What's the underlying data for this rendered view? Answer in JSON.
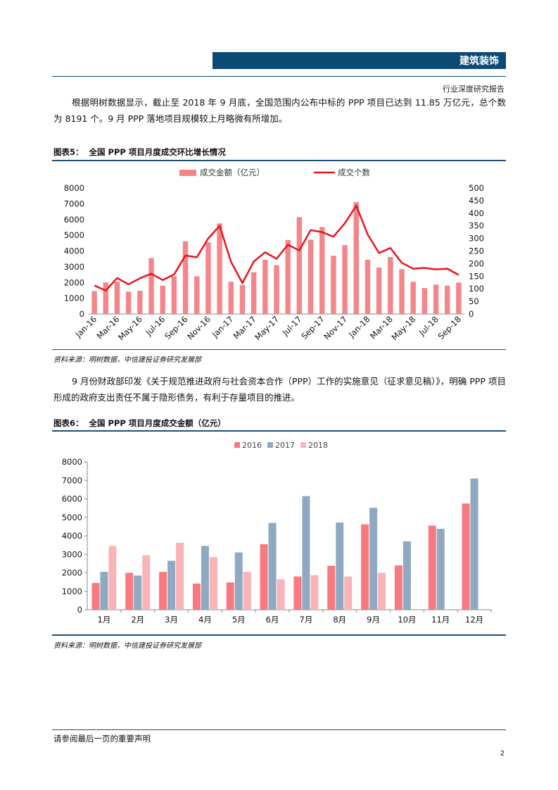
{
  "header": {
    "section_title": "建筑装饰",
    "subtitle": "行业深度研究报告"
  },
  "paragraphs": [
    "根据明树数据显示，截止至 2018 年 9 月底，全国范围内公布中标的 PPP 项目已达到 11.85 万亿元，总个数为 8191 个。9 月 PPP 落地项目规模较上月略微有所增加。",
    "9 月份财政部印发《关于规范推进政府与社会资本合作（PPP）工作的实施意见（征求意见稿）》，明确 PPP 项目形成的政府支出责任不属于隐形债务，有利于存量项目的推进。"
  ],
  "figure5": {
    "label": "图表5：",
    "title": "全国 PPP 项目月度成交环比增长情况",
    "source": "资料来源：明树数据，中信建投证券研究发展部"
  },
  "figure6": {
    "label": "图表6：",
    "title": "全国 PPP 项目月度成交金额（亿元）",
    "source": "资料来源：明树数据，中信建投证券研究发展部"
  },
  "footer": {
    "note": "请参阅最后一页的重要声明",
    "page": "2"
  },
  "colors": {
    "header_bg": "#0c4a76",
    "bar_amount": "#f4868a",
    "line_count": "#e8151b",
    "s2016": "#f8797f",
    "s2017": "#8ea9c1",
    "s2018": "#fab3b7"
  },
  "chart_data": [
    {
      "type": "bar+line",
      "series": [
        {
          "name": "成交金额（亿元）",
          "type": "bar",
          "axis": "left",
          "values": [
            1450,
            2000,
            2050,
            1420,
            1480,
            3550,
            1800,
            2380,
            4620,
            2400,
            4550,
            5750,
            2050,
            1850,
            2650,
            3450,
            3100,
            4700,
            6150,
            4720,
            5520,
            3700,
            4380,
            7100,
            3450,
            2950,
            3620,
            2850,
            2050,
            1650,
            1870,
            1800,
            2000
          ]
        },
        {
          "name": "成交个数",
          "type": "line",
          "axis": "right",
          "values": [
            113,
            93,
            143,
            118,
            142,
            160,
            135,
            157,
            232,
            225,
            300,
            350,
            207,
            123,
            208,
            245,
            219,
            275,
            252,
            333,
            325,
            307,
            360,
            430,
            316,
            242,
            262,
            203,
            180,
            183,
            177,
            180,
            155
          ]
        }
      ],
      "x_tick_labels": [
        "Jan-16",
        "Mar-16",
        "May-16",
        "Jul-16",
        "Sep-16",
        "Nov-16",
        "Jan-17",
        "Mar-17",
        "May-17",
        "Jul-17",
        "Sep-17",
        "Nov-17",
        "Jan-18",
        "Mar-18",
        "May-18",
        "Jul-18",
        "Sep-18"
      ],
      "y_left": {
        "min": 0,
        "max": 8000,
        "ticks": [
          0,
          1000,
          2000,
          3000,
          4000,
          5000,
          6000,
          7000,
          8000
        ]
      },
      "y_right": {
        "min": 0,
        "max": 500,
        "ticks": [
          0,
          50,
          100,
          150,
          200,
          250,
          300,
          350,
          400,
          450,
          500
        ]
      },
      "legend": "top"
    },
    {
      "type": "bar",
      "categories": [
        "1月",
        "2月",
        "3月",
        "4月",
        "5月",
        "6月",
        "7月",
        "8月",
        "9月",
        "10月",
        "11月",
        "12月"
      ],
      "series": [
        {
          "name": "2016",
          "values": [
            1450,
            2000,
            2050,
            1420,
            1480,
            3550,
            1800,
            2380,
            4620,
            2400,
            4550,
            5750
          ]
        },
        {
          "name": "2017",
          "values": [
            2050,
            1850,
            2650,
            3450,
            3100,
            4700,
            6150,
            4720,
            5520,
            3700,
            4380,
            7100
          ]
        },
        {
          "name": "2018",
          "values": [
            3450,
            2950,
            3620,
            2850,
            2050,
            1650,
            1870,
            1800,
            2000,
            null,
            null,
            null
          ]
        }
      ],
      "y_ticks": [
        0,
        1000,
        2000,
        3000,
        4000,
        5000,
        6000,
        7000,
        8000
      ],
      "ylim": [
        0,
        8000
      ],
      "legend": "top"
    }
  ]
}
